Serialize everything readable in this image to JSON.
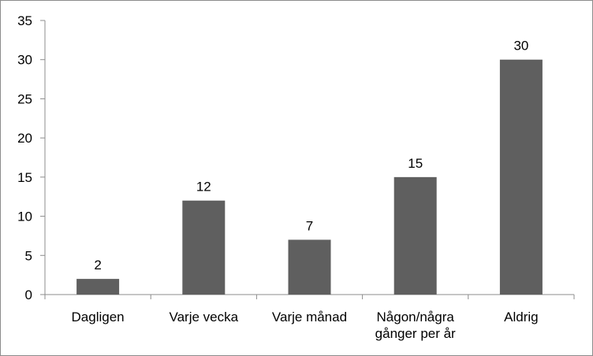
{
  "chart_data": {
    "type": "bar",
    "title": "",
    "xlabel": "",
    "ylabel": "",
    "categories": [
      [
        "Dagligen"
      ],
      [
        "Varje vecka"
      ],
      [
        "Varje månad"
      ],
      [
        "Någon/några",
        "gånger per år"
      ],
      [
        "Aldrig"
      ]
    ],
    "values": [
      2,
      12,
      7,
      15,
      30
    ],
    "data_labels": [
      "2",
      "12",
      "7",
      "15",
      "30"
    ],
    "ylim": [
      0,
      35
    ],
    "yticks": [
      0,
      5,
      10,
      15,
      20,
      25,
      30,
      35
    ],
    "grid": false,
    "legend": "none",
    "bar_color": "#5f5f5f",
    "axis_color": "#8c8c8c"
  }
}
